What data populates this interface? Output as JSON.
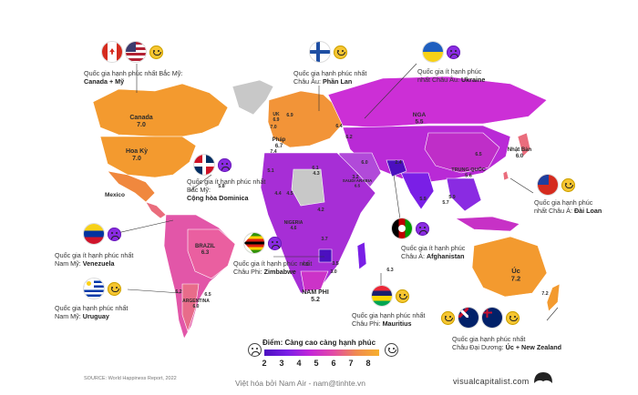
{
  "legend": {
    "title": "Điểm: Càng cao càng hạnh phúc",
    "ticks": [
      "2",
      "3",
      "4",
      "5",
      "6",
      "7",
      "8"
    ],
    "colors": [
      "#4b0fbf",
      "#7a1fe6",
      "#c426d8",
      "#e24aa6",
      "#f08a50",
      "#f7b02c"
    ]
  },
  "countries": [
    {
      "name": "Canada",
      "score": "7.0"
    },
    {
      "name": "Hoa Kỳ",
      "score": "7.0"
    },
    {
      "name": "Mexico",
      "score": ""
    },
    {
      "name": "BRAZIL",
      "score": "6.3"
    },
    {
      "name": "ARGENTINA",
      "score": "6.0"
    },
    {
      "name": "NGA",
      "score": "5.5"
    },
    {
      "name": "TRUNG QUỐC",
      "score": "5.6"
    },
    {
      "name": "Nhật Bản",
      "score": "6.0"
    },
    {
      "name": "Úc",
      "score": "7.2"
    },
    {
      "name": "NAM PHI",
      "score": "5.2"
    },
    {
      "name": "NIGERIA",
      "score": "4.6"
    },
    {
      "name": "SAUDI ARABIA",
      "score": "6.5"
    },
    {
      "name": "Pháp",
      "score": "6.7"
    },
    {
      "name": "UK",
      "score": "6.9"
    }
  ],
  "small_values": [
    "6.9",
    "7.0",
    "7.4",
    "6.1",
    "6.2",
    "6.4",
    "5.1",
    "4.3",
    "4.4",
    "4.5",
    "4.2",
    "6.0",
    "5.9",
    "5.7",
    "3.7",
    "3.0",
    "3.5",
    "4.5",
    "6.3",
    "6.2",
    "6.5",
    "5.8",
    "2.4",
    "6.5",
    "5.9",
    "7.2",
    "3.2"
  ],
  "annotations": [
    {
      "id": "na",
      "line1": "Quốc gia hạnh phúc nhất Bắc Mỹ:",
      "bold": "Canada + Mỹ"
    },
    {
      "id": "fi",
      "line1": "Quốc gia hạnh phúc nhất",
      "line2": "Châu Âu: ",
      "bold": "Phần Lan"
    },
    {
      "id": "ua",
      "line1": "Quốc gia ít hạnh phúc",
      "line2": "nhất Châu Âu: ",
      "bold": "Ukraine"
    },
    {
      "id": "do",
      "line1": "Quốc gia ít hạnh phúc nhất",
      "line2": "Bắc Mỹ:",
      "bold": "Cộng hòa Dominica"
    },
    {
      "id": "tw",
      "line1": "Quốc gia hạnh phúc",
      "line2": "nhất Châu Á: ",
      "bold": "Đài Loan"
    },
    {
      "id": "ve",
      "line1": "Quốc gia ít hạnh phúc nhất",
      "line2": "Nam Mỹ: ",
      "bold": "Venezuela"
    },
    {
      "id": "zw",
      "line1": "Quốc gia ít hạnh phúc nhất",
      "line2": "Châu Phi: ",
      "bold": "Zimbabwe"
    },
    {
      "id": "af",
      "line1": "Quốc gia ít hạnh phúc",
      "line2": "Châu Á: ",
      "bold": "Afghanistan"
    },
    {
      "id": "uy",
      "line1": "Quốc gia hạnh phúc nhất",
      "line2": "Nam Mỹ: ",
      "bold": "Uruguay"
    },
    {
      "id": "mu",
      "line1": "Quốc gia hạnh phúc nhất",
      "line2": "Châu Phi: ",
      "bold": "Mauritius"
    },
    {
      "id": "oc",
      "line1": "Quốc gia hạnh phúc nhất",
      "line2": "Châu Đại Dương: ",
      "bold": "Úc + New Zealand"
    }
  ],
  "footer": {
    "source": "SOURCE: World Happiness Report, 2022",
    "credit": "Việt hóa bởi Nam Air - nam@tinhte.vn",
    "brand": "visualcapitalist.com"
  }
}
